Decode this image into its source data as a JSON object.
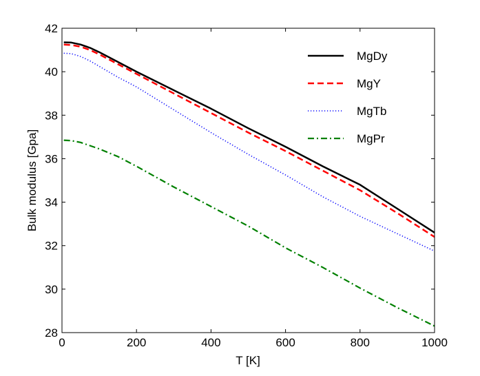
{
  "chart_data": {
    "type": "line",
    "title": "",
    "xlabel": "T [K]",
    "ylabel": "Bulk modulus [Gpa]",
    "xlim": [
      0,
      1000
    ],
    "ylim": [
      28,
      42
    ],
    "xticks": [
      0,
      200,
      400,
      600,
      800,
      1000
    ],
    "yticks": [
      28,
      30,
      32,
      34,
      36,
      38,
      40,
      42
    ],
    "grid": false,
    "legend_position": "top-right",
    "series": [
      {
        "name": "MgDy",
        "color": "#000000",
        "style": "solid",
        "x": [
          5,
          25,
          50,
          75,
          100,
          150,
          200,
          300,
          400,
          500,
          600,
          700,
          800,
          900,
          1000
        ],
        "y": [
          41.35,
          41.34,
          41.25,
          41.1,
          40.9,
          40.45,
          40.0,
          39.15,
          38.3,
          37.4,
          36.55,
          35.65,
          34.8,
          33.7,
          32.6
        ]
      },
      {
        "name": "MgY",
        "color": "#ff0000",
        "style": "dashed",
        "x": [
          5,
          25,
          50,
          75,
          100,
          150,
          200,
          300,
          400,
          500,
          600,
          700,
          800,
          900,
          1000
        ],
        "y": [
          41.25,
          41.23,
          41.15,
          41.0,
          40.8,
          40.35,
          39.9,
          39.0,
          38.1,
          37.2,
          36.35,
          35.45,
          34.55,
          33.5,
          32.4
        ]
      },
      {
        "name": "MgTb",
        "color": "#0000ff",
        "style": "dotted",
        "x": [
          5,
          25,
          50,
          75,
          100,
          150,
          200,
          300,
          400,
          500,
          600,
          700,
          800,
          900,
          1000
        ],
        "y": [
          40.85,
          40.83,
          40.7,
          40.5,
          40.25,
          39.75,
          39.3,
          38.25,
          37.2,
          36.2,
          35.25,
          34.25,
          33.35,
          32.55,
          31.75
        ]
      },
      {
        "name": "MgPr",
        "color": "#008000",
        "style": "dash-dot",
        "x": [
          5,
          25,
          50,
          75,
          100,
          150,
          200,
          300,
          400,
          500,
          600,
          700,
          800,
          900,
          1000
        ],
        "y": [
          36.85,
          36.83,
          36.75,
          36.6,
          36.45,
          36.1,
          35.65,
          34.7,
          33.8,
          32.9,
          31.9,
          31.0,
          30.05,
          29.15,
          28.3
        ]
      }
    ]
  }
}
